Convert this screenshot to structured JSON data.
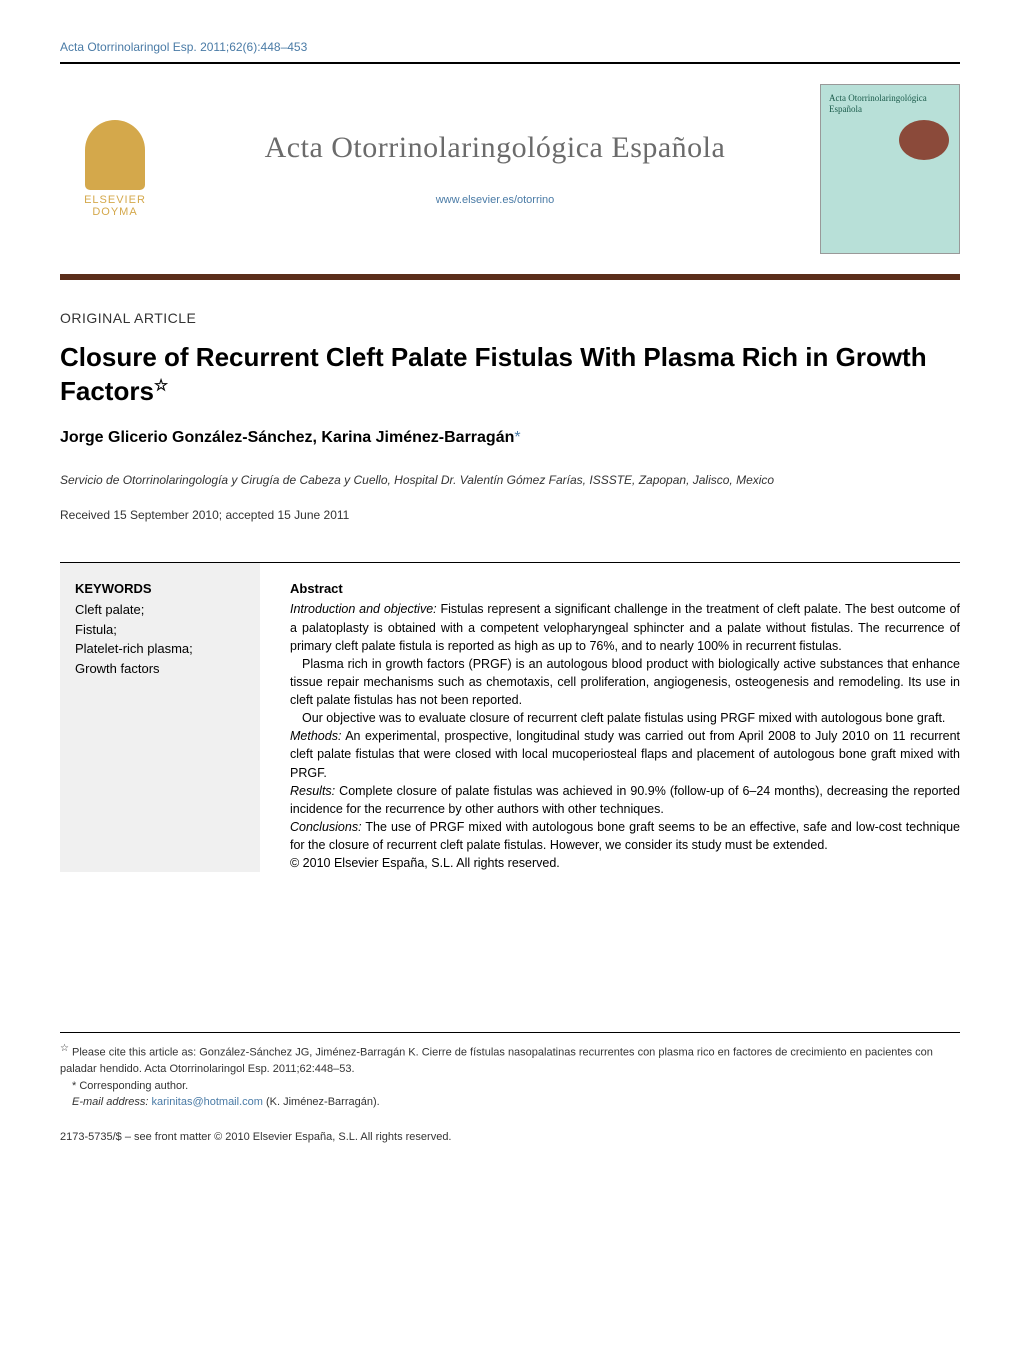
{
  "citation": "Acta Otorrinolaringol Esp. 2011;62(6):448–453",
  "journal": {
    "name": "Acta Otorrinolaringológica Española",
    "url": "www.elsevier.es/otorrino",
    "publisher_logo_text_1": "ELSEVIER",
    "publisher_logo_text_2": "DOYMA",
    "cover_title": "Acta Otorrinolaringológica Española"
  },
  "article": {
    "type": "ORIGINAL ARTICLE",
    "title": "Closure of Recurrent Cleft Palate Fistulas With Plasma Rich in Growth Factors",
    "title_note": "☆",
    "authors": "Jorge Glicerio González-Sánchez, Karina Jiménez-Barragán",
    "corresponding_mark": "*",
    "affiliation": "Servicio de Otorrinolaringología y Cirugía de Cabeza y Cuello, Hospital Dr. Valentín Gómez Farías, ISSSTE, Zapopan, Jalisco, Mexico",
    "dates": "Received 15 September 2010; accepted 15 June 2011"
  },
  "keywords": {
    "heading": "KEYWORDS",
    "items": [
      "Cleft palate;",
      "Fistula;",
      "Platelet-rich plasma;",
      "Growth factors"
    ]
  },
  "abstract": {
    "heading": "Abstract",
    "intro_label": "Introduction and objective:",
    "intro_text": " Fistulas represent a significant challenge in the treatment of cleft palate. The best outcome of a palatoplasty is obtained with a competent velopharyngeal sphincter and a palate without fistulas. The recurrence of primary cleft palate fistula is reported as high as up to 76%, and to nearly 100% in recurrent fistulas.",
    "para2": "Plasma rich in growth factors (PRGF) is an autologous blood product with biologically active substances that enhance tissue repair mechanisms such as chemotaxis, cell proliferation, angiogenesis, osteogenesis and remodeling. Its use in cleft palate fistulas has not been reported.",
    "para3": "Our objective was to evaluate closure of recurrent cleft palate fistulas using PRGF mixed with autologous bone graft.",
    "methods_label": "Methods:",
    "methods_text": " An experimental, prospective, longitudinal study was carried out from April 2008 to July 2010 on 11 recurrent cleft palate fistulas that were closed with local mucoperiosteal flaps and placement of autologous bone graft mixed with PRGF.",
    "results_label": "Results:",
    "results_text": " Complete closure of palate fistulas was achieved in 90.9% (follow-up of 6–24 months), decreasing the reported incidence for the recurrence by other authors with other techniques.",
    "conclusions_label": "Conclusions:",
    "conclusions_text": " The use of PRGF mixed with autologous bone graft seems to be an effective, safe and low-cost technique for the closure of recurrent cleft palate fistulas. However, we consider its study must be extended.",
    "copyright": "© 2010 Elsevier España, S.L. All rights reserved."
  },
  "footnotes": {
    "cite_as_star": "☆",
    "cite_as": " Please cite this article as: González-Sánchez JG, Jiménez-Barragán K. Cierre de fístulas nasopalatinas recurrentes con plasma rico en factores de crecimiento en pacientes con paladar hendido. Acta Otorrinolaringol Esp. 2011;62:448–53.",
    "corresponding": "* Corresponding author.",
    "email_label": "E-mail address:",
    "email": "karinitas@hotmail.com",
    "email_suffix": " (K. Jiménez-Barragán)."
  },
  "footer": "2173-5735/$ – see front matter © 2010 Elsevier España, S.L. All rights reserved.",
  "colors": {
    "link": "#4a7ba6",
    "banner_border": "#5b2e1a",
    "logo": "#d4a84b",
    "journal_name": "#6b6b6b",
    "cover_bg": "#b8e0d8",
    "keywords_bg": "#f0f0f0"
  },
  "typography": {
    "body_font": "Arial, Helvetica, sans-serif",
    "serif_font": "Georgia, serif",
    "article_title_size": 26,
    "journal_name_size": 30,
    "body_size": 12.5,
    "footnote_size": 11
  }
}
